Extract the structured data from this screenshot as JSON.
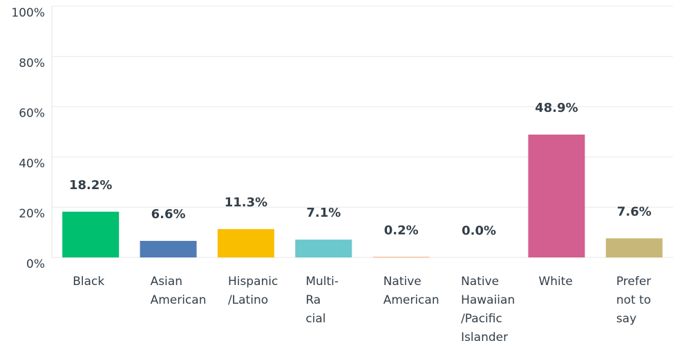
{
  "chart_data": {
    "type": "bar",
    "categories": [
      "Black",
      "Asian\nAmerican",
      "Hispanic\n/Latino",
      "Multi-\nRa\ncial",
      "Native\nAmerican",
      "Native\nHawaiian\n/Pacific\nIslander",
      "White",
      "Prefer\nnot to\nsay"
    ],
    "values": [
      18.2,
      6.6,
      11.3,
      7.1,
      0.2,
      0.0,
      48.9,
      7.6
    ],
    "value_labels": [
      "18.2%",
      "6.6%",
      "11.3%",
      "7.1%",
      "0.2%",
      "0.0%",
      "48.9%",
      "7.6%"
    ],
    "colors": [
      "#00bf6f",
      "#507cb6",
      "#f9be00",
      "#6bc8cd",
      "#ff8b4f",
      "#7f7fff",
      "#d25f90",
      "#c7b879"
    ],
    "ylim": [
      0,
      100
    ],
    "yticks": [
      {
        "value": 0,
        "label": "0%"
      },
      {
        "value": 20,
        "label": "20%"
      },
      {
        "value": 40,
        "label": "40%"
      },
      {
        "value": 60,
        "label": "60%"
      },
      {
        "value": 80,
        "label": "80%"
      },
      {
        "value": 100,
        "label": "100%"
      }
    ],
    "grid": true
  }
}
